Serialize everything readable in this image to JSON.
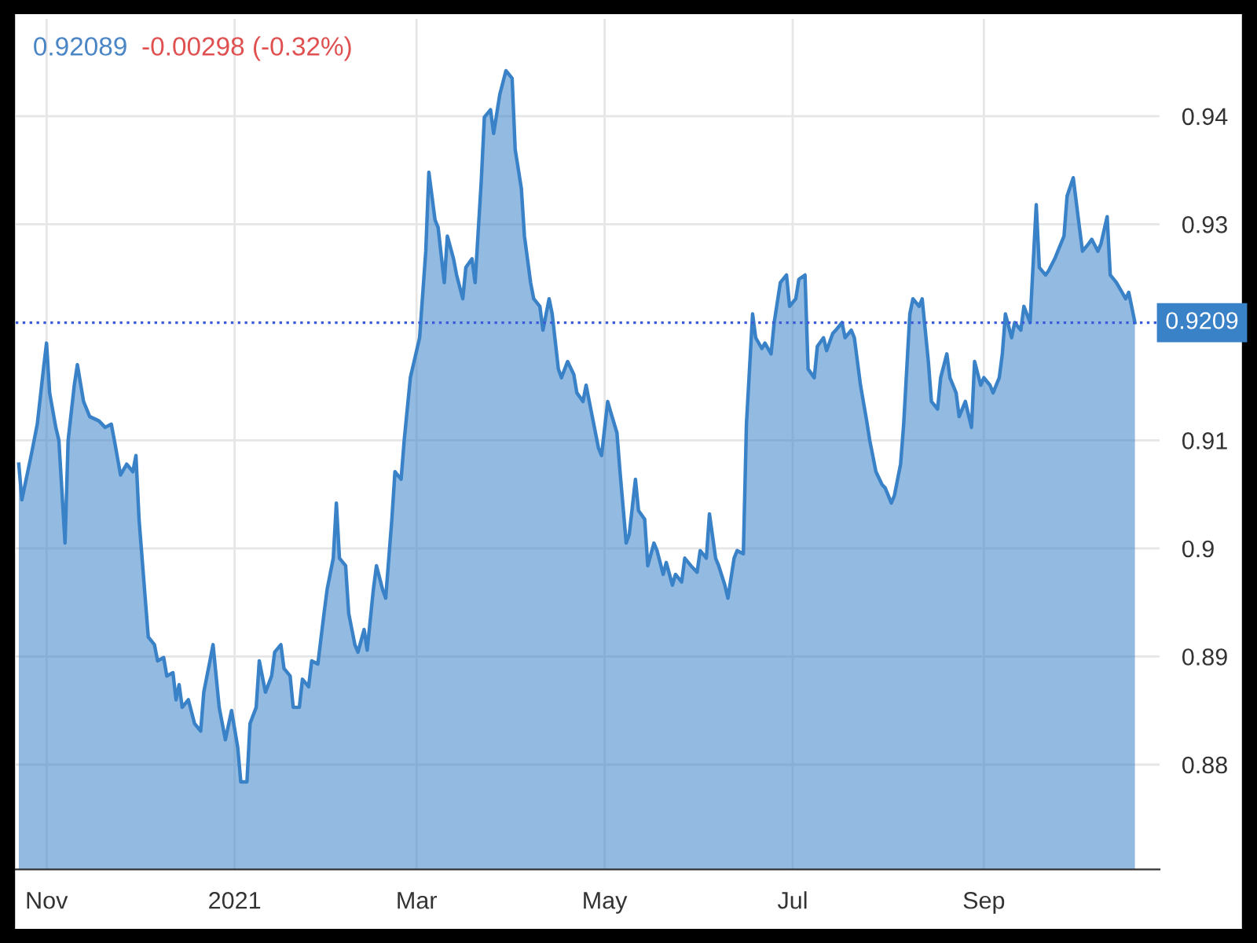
{
  "chart_data": {
    "type": "area",
    "annotations": [
      "0.92089",
      "-0.00298 (-0.32%)"
    ],
    "series": [
      {
        "color": "#3a82c8",
        "x": [
          "2020-10-23",
          "2020-10-24",
          "2020-10-27",
          "2020-10-29",
          "2020-10-31",
          "2020-11-01",
          "2020-11-02",
          "2020-11-04",
          "2020-11-05",
          "2020-11-07",
          "2020-11-08",
          "2020-11-10",
          "2020-11-11",
          "2020-11-13",
          "2020-11-15",
          "2020-11-18",
          "2020-11-20",
          "2020-11-22",
          "2020-11-23",
          "2020-11-25",
          "2020-11-27",
          "2020-11-29",
          "2020-11-30",
          "2020-12-01",
          "2020-12-03",
          "2020-12-04",
          "2020-12-06",
          "2020-12-07",
          "2020-12-09",
          "2020-12-10",
          "2020-12-12",
          "2020-12-13",
          "2020-12-14",
          "2020-12-15",
          "2020-12-17",
          "2020-12-19",
          "2020-12-21",
          "2020-12-22",
          "2020-12-24",
          "2020-12-25",
          "2020-12-26",
          "2020-12-27",
          "2020-12-29",
          "2020-12-31",
          "2021-01-02",
          "2021-01-03",
          "2021-01-05",
          "2021-01-06",
          "2021-01-08",
          "2021-01-09",
          "2021-01-11",
          "2021-01-13",
          "2021-01-14",
          "2021-01-16",
          "2021-01-17",
          "2021-01-19",
          "2021-01-20",
          "2021-01-22",
          "2021-01-23",
          "2021-01-25",
          "2021-01-26",
          "2021-01-28",
          "2021-01-30",
          "2021-01-31",
          "2021-02-02",
          "2021-02-03",
          "2021-02-04",
          "2021-02-06",
          "2021-02-07",
          "2021-02-09",
          "2021-02-10",
          "2021-02-12",
          "2021-02-13",
          "2021-02-15",
          "2021-02-16",
          "2021-02-18",
          "2021-02-19",
          "2021-02-21",
          "2021-02-22",
          "2021-02-24",
          "2021-02-25",
          "2021-02-27",
          "2021-03-02",
          "2021-03-04",
          "2021-03-05",
          "2021-03-07",
          "2021-03-08",
          "2021-03-10",
          "2021-03-11",
          "2021-03-13",
          "2021-03-14",
          "2021-03-16",
          "2021-03-17",
          "2021-03-19",
          "2021-03-20",
          "2021-03-22",
          "2021-03-23",
          "2021-03-25",
          "2021-03-26",
          "2021-03-28",
          "2021-03-30",
          "2021-04-01",
          "2021-04-02",
          "2021-04-04",
          "2021-04-05",
          "2021-04-07",
          "2021-04-08",
          "2021-04-10",
          "2021-04-11",
          "2021-04-13",
          "2021-04-14",
          "2021-04-16",
          "2021-04-17",
          "2021-04-19",
          "2021-04-21",
          "2021-04-22",
          "2021-04-24",
          "2021-04-25",
          "2021-04-27",
          "2021-04-29",
          "2021-04-30",
          "2021-05-02",
          "2021-05-03",
          "2021-05-05",
          "2021-05-06",
          "2021-05-08",
          "2021-05-09",
          "2021-05-11",
          "2021-05-12",
          "2021-05-14",
          "2021-05-15",
          "2021-05-17",
          "2021-05-18",
          "2021-05-20",
          "2021-05-21",
          "2021-05-23",
          "2021-05-24",
          "2021-05-26",
          "2021-05-27",
          "2021-05-29",
          "2021-05-31",
          "2021-06-01",
          "2021-06-03",
          "2021-06-04",
          "2021-06-06",
          "2021-06-07",
          "2021-06-09",
          "2021-06-10",
          "2021-06-12",
          "2021-06-13",
          "2021-06-15",
          "2021-06-16",
          "2021-06-18",
          "2021-06-19",
          "2021-06-21",
          "2021-06-22",
          "2021-06-24",
          "2021-06-25",
          "2021-06-27",
          "2021-06-29",
          "2021-06-30",
          "2021-07-02",
          "2021-07-03",
          "2021-07-05",
          "2021-07-06",
          "2021-07-08",
          "2021-07-09",
          "2021-07-11",
          "2021-07-12",
          "2021-07-14",
          "2021-07-15",
          "2021-07-17",
          "2021-07-18",
          "2021-07-20",
          "2021-07-21",
          "2021-07-23",
          "2021-07-25",
          "2021-07-26",
          "2021-07-28",
          "2021-07-30",
          "2021-07-31",
          "2021-08-02",
          "2021-08-03",
          "2021-08-05",
          "2021-08-06",
          "2021-08-08",
          "2021-08-09",
          "2021-08-11",
          "2021-08-12",
          "2021-08-14",
          "2021-08-15",
          "2021-08-17",
          "2021-08-18",
          "2021-08-20",
          "2021-08-21",
          "2021-08-23",
          "2021-08-24",
          "2021-08-26",
          "2021-08-28",
          "2021-08-29",
          "2021-08-31",
          "2021-09-01",
          "2021-09-03",
          "2021-09-04",
          "2021-09-06",
          "2021-09-07",
          "2021-09-08",
          "2021-09-10",
          "2021-09-11",
          "2021-09-13",
          "2021-09-14",
          "2021-09-16",
          "2021-09-18",
          "2021-09-19",
          "2021-09-21",
          "2021-09-22",
          "2021-09-24",
          "2021-09-25",
          "2021-09-27",
          "2021-09-28",
          "2021-09-30",
          "2021-10-02",
          "2021-10-03",
          "2021-10-05",
          "2021-10-06",
          "2021-10-08",
          "2021-10-09",
          "2021-10-11",
          "2021-10-12",
          "2021-10-14",
          "2021-10-15",
          "2021-10-17",
          "2021-10-18",
          "2021-10-20"
        ],
        "values": [
          0.9078,
          0.9045,
          0.9086,
          0.9115,
          0.9166,
          0.919,
          0.9144,
          0.9112,
          0.91,
          0.9005,
          0.91,
          0.9151,
          0.917,
          0.9136,
          0.9122,
          0.9118,
          0.9112,
          0.9115,
          0.91,
          0.9068,
          0.9078,
          0.9071,
          0.9086,
          0.9027,
          0.8954,
          0.8918,
          0.8911,
          0.8896,
          0.8899,
          0.8882,
          0.8885,
          0.886,
          0.8874,
          0.8853,
          0.886,
          0.8838,
          0.8831,
          0.8867,
          0.8896,
          0.8911,
          0.8882,
          0.8853,
          0.8823,
          0.885,
          0.8816,
          0.8784,
          0.8784,
          0.8838,
          0.8853,
          0.8896,
          0.8867,
          0.8882,
          0.8904,
          0.8911,
          0.8889,
          0.8882,
          0.8853,
          0.8853,
          0.8879,
          0.8872,
          0.8896,
          0.8893,
          0.894,
          0.8962,
          0.8991,
          0.9042,
          0.8991,
          0.8984,
          0.894,
          0.8911,
          0.8904,
          0.8925,
          0.8906,
          0.8962,
          0.8984,
          0.8962,
          0.8954,
          0.9027,
          0.9071,
          0.9064,
          0.91,
          0.9158,
          0.9195,
          0.9275,
          0.9348,
          0.9304,
          0.9297,
          0.9246,
          0.9289,
          0.9268,
          0.9253,
          0.9231,
          0.926,
          0.9268,
          0.9246,
          0.934,
          0.9399,
          0.9406,
          0.9384,
          0.942,
          0.9442,
          0.9435,
          0.9369,
          0.9333,
          0.9289,
          0.9246,
          0.9231,
          0.9224,
          0.9202,
          0.9231,
          0.9217,
          0.9166,
          0.9158,
          0.9173,
          0.9161,
          0.9144,
          0.9136,
          0.9151,
          0.9122,
          0.9093,
          0.9086,
          0.9136,
          0.9126,
          0.9107,
          0.9071,
          0.9005,
          0.9013,
          0.9064,
          0.9035,
          0.9027,
          0.8984,
          0.9005,
          0.8998,
          0.8976,
          0.8987,
          0.8966,
          0.8976,
          0.8969,
          0.8991,
          0.8984,
          0.8978,
          0.8998,
          0.8991,
          0.9032,
          0.8991,
          0.8984,
          0.8966,
          0.8954,
          0.8991,
          0.8998,
          0.8995,
          0.9115,
          0.9217,
          0.9195,
          0.9185,
          0.919,
          0.918,
          0.9209,
          0.9246,
          0.9253,
          0.9224,
          0.9231,
          0.9249,
          0.9253,
          0.9166,
          0.9158,
          0.9187,
          0.9195,
          0.9183,
          0.9199,
          0.9202,
          0.9209,
          0.9195,
          0.9202,
          0.9195,
          0.9151,
          0.9118,
          0.91,
          0.9071,
          0.9059,
          0.9056,
          0.9042,
          0.9049,
          0.9078,
          0.9115,
          0.9217,
          0.9231,
          0.9224,
          0.9231,
          0.9173,
          0.9136,
          0.9129,
          0.9158,
          0.918,
          0.9158,
          0.9144,
          0.9122,
          0.9136,
          0.9112,
          0.9173,
          0.9151,
          0.9158,
          0.9151,
          0.9144,
          0.9158,
          0.918,
          0.9217,
          0.9195,
          0.9209,
          0.9202,
          0.9224,
          0.9209,
          0.9318,
          0.926,
          0.9253,
          0.9257,
          0.9268,
          0.9275,
          0.9289,
          0.9326,
          0.9343,
          0.9297,
          0.9275,
          0.9282,
          0.9286,
          0.9275,
          0.9282,
          0.9307,
          0.9253,
          0.9246,
          0.9241,
          0.9231,
          0.9237,
          0.9209
        ]
      }
    ],
    "xlim": [
      "2020-10-22",
      "2021-10-28"
    ],
    "xticks": [
      {
        "value": "2020-11-01",
        "label": "Nov"
      },
      {
        "value": "2021-01-01",
        "label": "2021"
      },
      {
        "value": "2021-03-01",
        "label": "Mar"
      },
      {
        "value": "2021-05-01",
        "label": "May"
      },
      {
        "value": "2021-07-01",
        "label": "Jul"
      },
      {
        "value": "2021-09-01",
        "label": "Sep"
      }
    ],
    "ylim": [
      0.8703,
      0.949
    ],
    "yticks": [
      0.88,
      0.89,
      {
        "value": 0.9,
        "label": "0.9"
      },
      0.91,
      0.93,
      0.94
    ],
    "ref_lines": [
      {
        "axis": "y",
        "value": 0.92089,
        "label": "0.9209",
        "color": "#3b5bdb",
        "line_style": "dotted"
      }
    ],
    "grid": true,
    "legend": false
  }
}
